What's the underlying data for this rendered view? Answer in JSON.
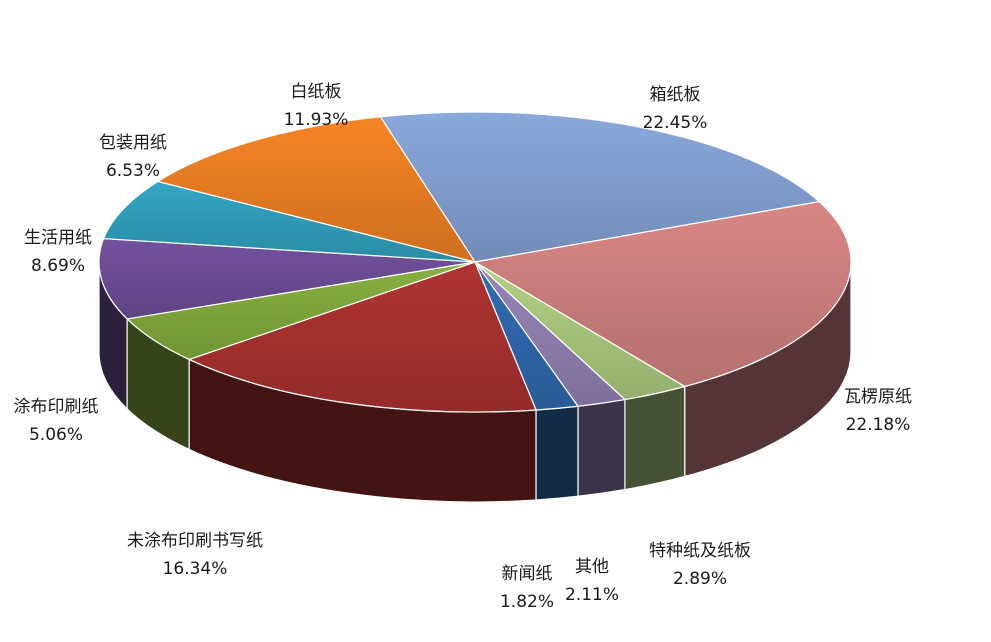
{
  "chart_data": {
    "type": "pie",
    "style": "3d",
    "legend": "none",
    "slices": [
      {
        "label": "箱纸板",
        "value": 22.45,
        "value_text": "22.45%",
        "color": "#7f9ccb"
      },
      {
        "label": "瓦楞原纸",
        "value": 22.18,
        "value_text": "22.18%",
        "color": "#c97c7b"
      },
      {
        "label": "特种纸及纸板",
        "value": 2.89,
        "value_text": "2.89%",
        "color": "#a5c27a"
      },
      {
        "label": "其他",
        "value": 2.11,
        "value_text": "2.11%",
        "color": "#8c7cab"
      },
      {
        "label": "新闻纸",
        "value": 1.82,
        "value_text": "1.82%",
        "color": "#2e65a8"
      },
      {
        "label": "未涂布印刷书写纸",
        "value": 16.34,
        "value_text": "16.34%",
        "color": "#a3302d"
      },
      {
        "label": "涂布印刷纸",
        "value": 5.06,
        "value_text": "5.06%",
        "color": "#7ea43b"
      },
      {
        "label": "生活用纸",
        "value": 8.69,
        "value_text": "8.69%",
        "color": "#6a4b92"
      },
      {
        "label": "包装用纸",
        "value": 6.53,
        "value_text": "6.53%",
        "color": "#2f9ab6"
      },
      {
        "label": "白纸板",
        "value": 11.93,
        "value_text": "11.93%",
        "color": "#e47b22"
      }
    ]
  }
}
